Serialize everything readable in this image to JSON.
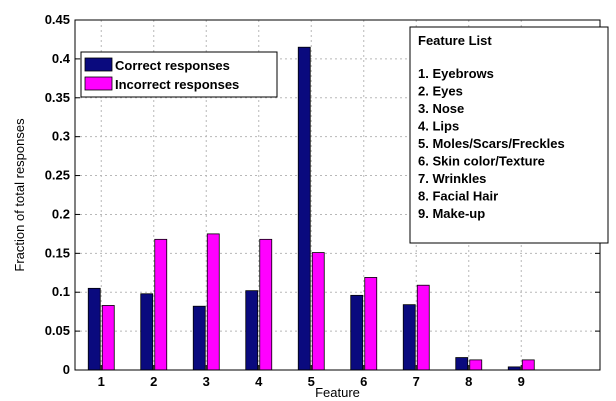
{
  "chart_data": {
    "type": "bar",
    "xlabel": "Feature",
    "ylabel": "Fraction of total responses",
    "categories": [
      "1",
      "2",
      "3",
      "4",
      "5",
      "6",
      "7",
      "8",
      "9"
    ],
    "ylim": [
      0,
      0.45
    ],
    "yticks": [
      "0",
      "0.05",
      "0.1",
      "0.15",
      "0.2",
      "0.25",
      "0.3",
      "0.35",
      "0.4",
      "0.45"
    ],
    "ytick_values": [
      0,
      0.05,
      0.1,
      0.15,
      0.2,
      0.25,
      0.3,
      0.35,
      0.4,
      0.45
    ],
    "grid": true,
    "legend_position": "top-left",
    "series": [
      {
        "name": "Correct responses",
        "color": "#0a0a7e",
        "values": [
          0.105,
          0.098,
          0.082,
          0.102,
          0.415,
          0.096,
          0.084,
          0.016,
          0.004
        ]
      },
      {
        "name": "Incorrect responses",
        "color": "#ff00ff",
        "values": [
          0.083,
          0.168,
          0.175,
          0.168,
          0.151,
          0.119,
          0.109,
          0.013,
          0.013
        ]
      }
    ],
    "feature_list": {
      "title": "Feature List",
      "items": [
        "1. Eyebrows",
        "2. Eyes",
        "3. Nose",
        "4. Lips",
        "5. Moles/Scars/Freckles",
        "6. Skin color/Texture",
        "7. Wrinkles",
        "8. Facial Hair",
        "9. Make-up"
      ]
    }
  }
}
